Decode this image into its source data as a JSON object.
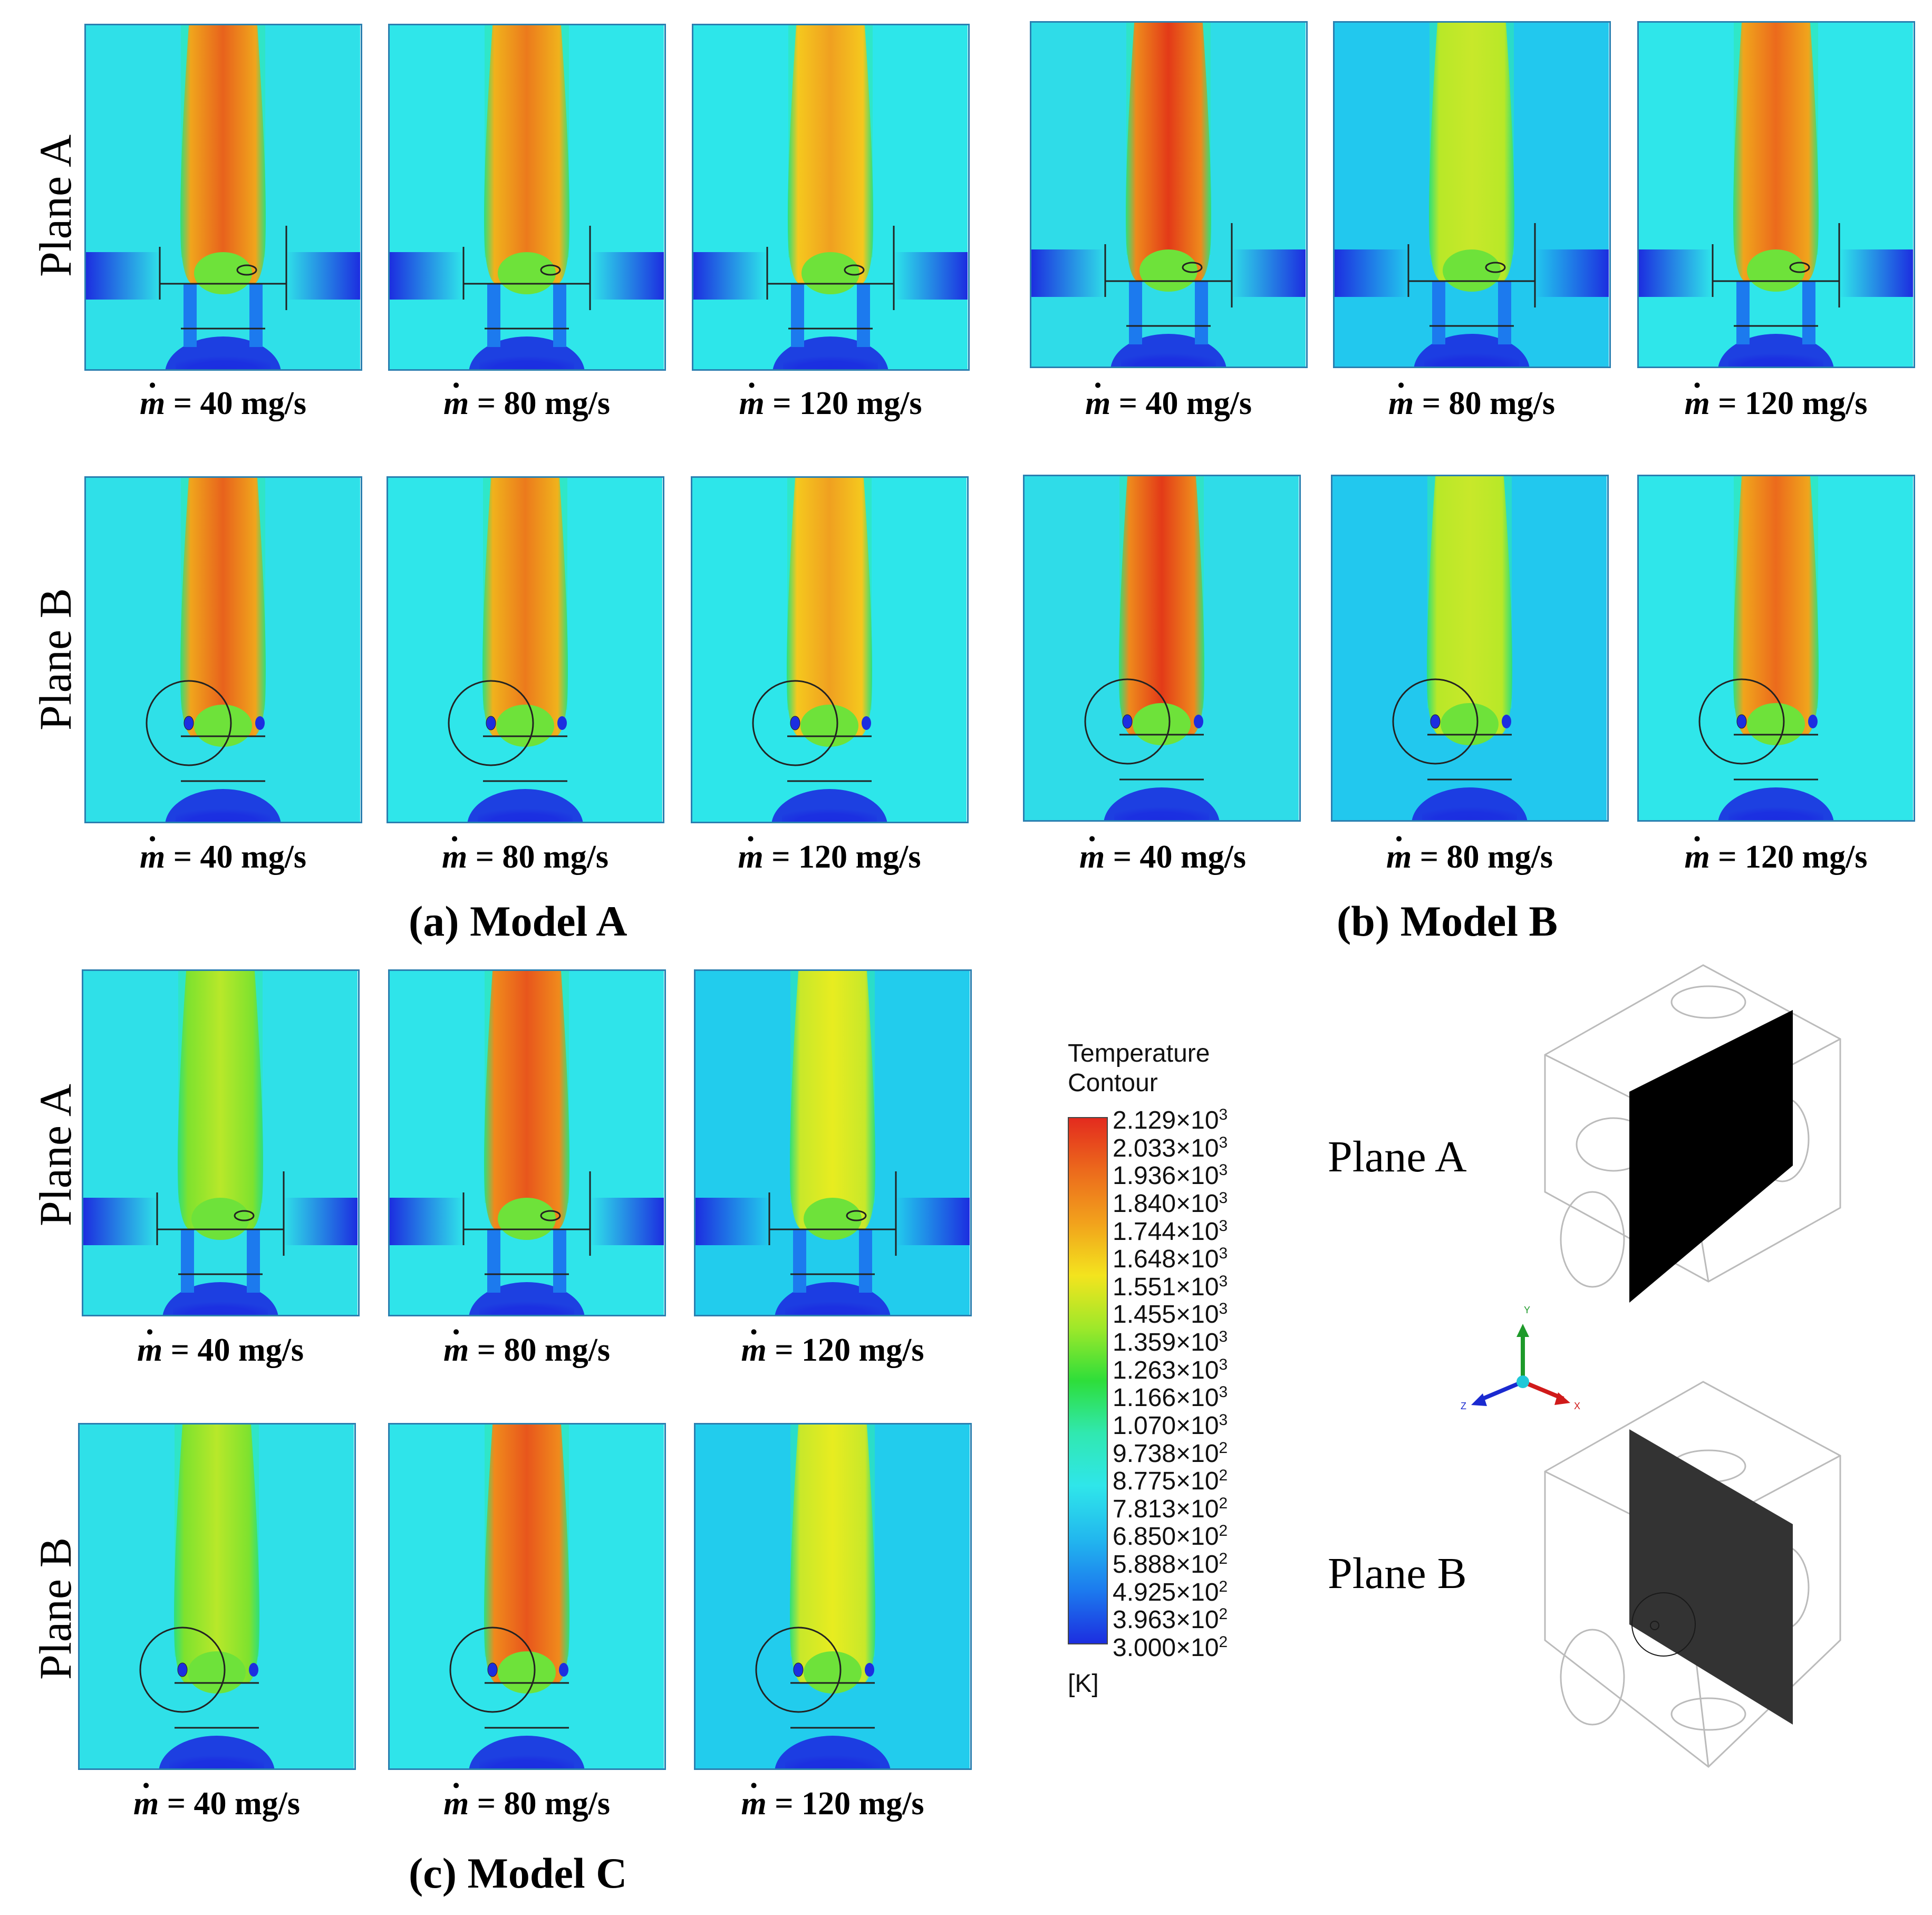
{
  "models": [
    {
      "caption": "(a) Model A",
      "rows": [
        {
          "label": "Plane A",
          "plane": "A",
          "panels": [
            {
              "caption_var": "m",
              "caption_rest": " = 40 mg/s",
              "core": "#e8621c",
              "mid": "#f0a51c",
              "bg": "#2fe0e8"
            },
            {
              "caption_var": "m",
              "caption_rest": " = 80 mg/s",
              "core": "#ec7a1c",
              "mid": "#f0b21c",
              "bg": "#2fe6ea"
            },
            {
              "caption_var": "m",
              "caption_rest": " = 120 mg/s",
              "core": "#f0a020",
              "mid": "#f5c81e",
              "bg": "#2de6ea"
            }
          ]
        },
        {
          "label": "Plane B",
          "plane": "B",
          "panels": [
            {
              "caption_var": "m",
              "caption_rest": " = 40 mg/s",
              "core": "#e8621c",
              "mid": "#f0a51c",
              "bg": "#2fe0e8"
            },
            {
              "caption_var": "m",
              "caption_rest": " = 80 mg/s",
              "core": "#ec7a1c",
              "mid": "#f0b21c",
              "bg": "#2fe6ea"
            },
            {
              "caption_var": "m",
              "caption_rest": " = 120 mg/s",
              "core": "#f0a020",
              "mid": "#f5c81e",
              "bg": "#2de6ea"
            }
          ]
        }
      ]
    },
    {
      "caption": "(b) Model B",
      "rows": [
        {
          "label": "",
          "plane": "A",
          "panels": [
            {
              "caption_var": "m",
              "caption_rest": " = 40 mg/s",
              "core": "#e33a18",
              "mid": "#ee8a1c",
              "bg": "#2fdce8"
            },
            {
              "caption_var": "m",
              "caption_rest": " = 80 mg/s",
              "core": "#c8e82a",
              "mid": "#b8e828",
              "bg": "#22c8ee"
            },
            {
              "caption_var": "m",
              "caption_rest": " = 120 mg/s",
              "core": "#ec6a1c",
              "mid": "#f0a51c",
              "bg": "#2fe6ea"
            }
          ]
        },
        {
          "label": "",
          "plane": "B",
          "panels": [
            {
              "caption_var": "m",
              "caption_rest": " = 40 mg/s",
              "core": "#e33a18",
              "mid": "#ee8a1c",
              "bg": "#2fdce8"
            },
            {
              "caption_var": "m",
              "caption_rest": " = 80 mg/s",
              "core": "#c8e82a",
              "mid": "#b8e828",
              "bg": "#22c8ee"
            },
            {
              "caption_var": "m",
              "caption_rest": " = 120 mg/s",
              "core": "#ec6a1c",
              "mid": "#f0a51c",
              "bg": "#2fe6ea"
            }
          ]
        }
      ]
    },
    {
      "caption": "(c) Model C",
      "rows": [
        {
          "label": "Plane A",
          "plane": "A",
          "panels": [
            {
              "caption_var": "m",
              "caption_rest": " = 40 mg/s",
              "core": "#b8e82a",
              "mid": "#7ee22e",
              "bg": "#2fe0e8"
            },
            {
              "caption_var": "m",
              "caption_rest": " = 80 mg/s",
              "core": "#e8561c",
              "mid": "#f08a1c",
              "bg": "#2fe4ea"
            },
            {
              "caption_var": "m",
              "caption_rest": " = 120 mg/s",
              "core": "#e8ec20",
              "mid": "#c8e82a",
              "bg": "#22cced"
            }
          ]
        },
        {
          "label": "Plane B",
          "plane": "B",
          "panels": [
            {
              "caption_var": "m",
              "caption_rest": " = 40 mg/s",
              "core": "#b8e82a",
              "mid": "#7ee22e",
              "bg": "#2fe0e8"
            },
            {
              "caption_var": "m",
              "caption_rest": " = 80 mg/s",
              "core": "#e8561c",
              "mid": "#f08a1c",
              "bg": "#2fe4ea"
            },
            {
              "caption_var": "m",
              "caption_rest": " = 120 mg/s",
              "core": "#e8ec20",
              "mid": "#c8e82a",
              "bg": "#22cced"
            }
          ]
        }
      ]
    }
  ],
  "legend": {
    "title1": "Temperature",
    "title2": "Contour",
    "unit": "[K]",
    "colors": [
      "#e32b1e",
      "#ec6a1c",
      "#f2a21c",
      "#f3e41e",
      "#9ee82a",
      "#2ede3a",
      "#30e8b0",
      "#2fe6ea",
      "#22b8ee",
      "#1c7aee",
      "#1c2ee0"
    ],
    "ticks": [
      {
        "mant": "2.129",
        "exp": "3"
      },
      {
        "mant": "2.033",
        "exp": "3"
      },
      {
        "mant": "1.936",
        "exp": "3"
      },
      {
        "mant": "1.840",
        "exp": "3"
      },
      {
        "mant": "1.744",
        "exp": "3"
      },
      {
        "mant": "1.648",
        "exp": "3"
      },
      {
        "mant": "1.551",
        "exp": "3"
      },
      {
        "mant": "1.455",
        "exp": "3"
      },
      {
        "mant": "1.359",
        "exp": "3"
      },
      {
        "mant": "1.263",
        "exp": "3"
      },
      {
        "mant": "1.166",
        "exp": "3"
      },
      {
        "mant": "1.070",
        "exp": "3"
      },
      {
        "mant": "9.738",
        "exp": "2"
      },
      {
        "mant": "8.775",
        "exp": "2"
      },
      {
        "mant": "7.813",
        "exp": "2"
      },
      {
        "mant": "6.850",
        "exp": "2"
      },
      {
        "mant": "5.888",
        "exp": "2"
      },
      {
        "mant": "4.925",
        "exp": "2"
      },
      {
        "mant": "3.963",
        "exp": "2"
      },
      {
        "mant": "3.000",
        "exp": "2"
      }
    ]
  },
  "plane_diagram": {
    "plane_a_label": "Plane A",
    "plane_b_label": "Plane B",
    "axis_y": "Y",
    "axis_z": "Z",
    "axis_x": "X",
    "plane_a_color": "#000000",
    "plane_b_color": "#333333"
  }
}
